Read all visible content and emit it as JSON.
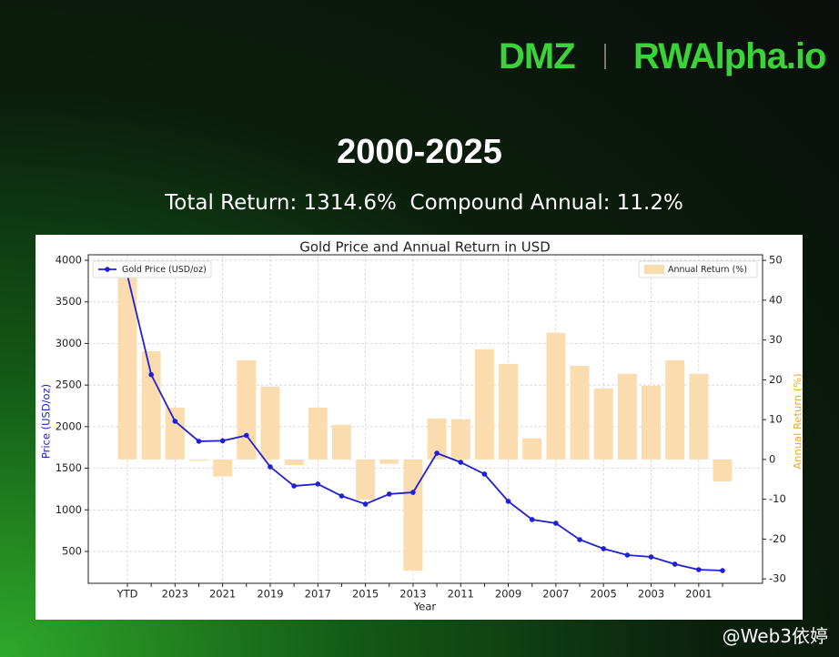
{
  "header": {
    "logo_left": "DMZ",
    "logo_right": "RWAlpha.io",
    "title": "2000-2025",
    "subtitle": "Total Return: 1314.6%  Compound Annual: 11.2%"
  },
  "chart_data": {
    "type": "combo",
    "title": "Gold Price and Annual Return in USD",
    "x_label": "Year",
    "y_label": "Price (USD/oz)",
    "y2_label": "Annual Return (%)",
    "categories": [
      "YTD",
      null,
      "2023",
      null,
      "2021",
      null,
      "2019",
      null,
      "2017",
      null,
      "2015",
      null,
      "2013",
      null,
      "2011",
      null,
      "2009",
      null,
      "2007",
      null,
      "2005",
      null,
      "2003",
      null,
      "2001",
      null
    ],
    "series": [
      {
        "name": "Gold Price (USD/oz)",
        "type": "line",
        "color": "#1f1fd6",
        "legend": "upper left",
        "values": [
          3820,
          2625,
          2065,
          1824,
          1830,
          1895,
          1517,
          1287,
          1310,
          1167,
          1069,
          1190,
          1210,
          1681,
          1572,
          1430,
          1102,
          883,
          839,
          642,
          533,
          456,
          434,
          347,
          281,
          270
        ]
      },
      {
        "name": "Annual Return (%)",
        "type": "bar",
        "axis": "y2",
        "color": "#fbdcae",
        "legend": "upper right",
        "values": [
          47.1,
          27.2,
          13.0,
          -0.3,
          -4.3,
          24.9,
          18.3,
          -1.4,
          13.0,
          8.7,
          -10.1,
          -1.1,
          -27.9,
          10.3,
          10.1,
          27.7,
          24.0,
          5.3,
          31.8,
          23.5,
          17.8,
          21.5,
          18.5,
          24.9,
          21.5,
          -5.5
        ]
      }
    ],
    "ylim": [
      117,
      4066
    ],
    "yticks": [
      500,
      1000,
      1500,
      2000,
      2500,
      3000,
      3500,
      4000
    ],
    "y2lim": [
      -31.1,
      51.4
    ],
    "y2ticks": [
      -30,
      -20,
      -10,
      0,
      10,
      20,
      30,
      40,
      50
    ],
    "grid": true
  },
  "footer": {
    "watermark": "@Web3依婷"
  }
}
